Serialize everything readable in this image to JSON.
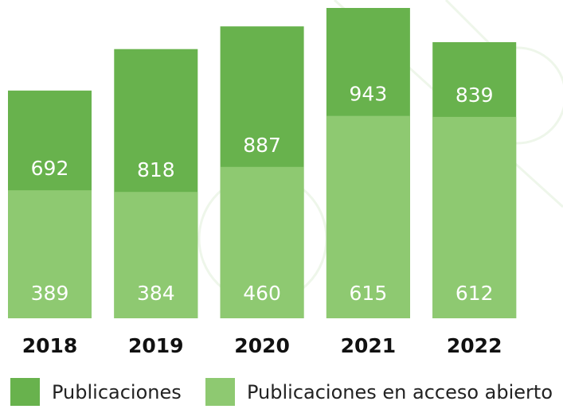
{
  "chart_data": {
    "type": "bar",
    "categories": [
      "2018",
      "2019",
      "2020",
      "2021",
      "2022"
    ],
    "series": [
      {
        "name": "Publicaciones",
        "color": "#68b24d",
        "values": [
          692,
          818,
          887,
          943,
          839
        ]
      },
      {
        "name": "Publicaciones  en acceso abierto",
        "color": "#8ec971",
        "values": [
          389,
          384,
          460,
          615,
          612
        ]
      }
    ]
  }
}
